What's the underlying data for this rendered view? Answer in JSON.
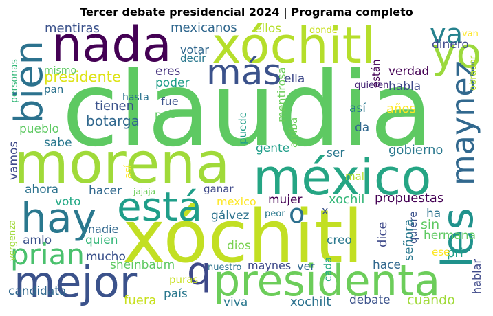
{
  "title": "Tercer debate presidencial 2024 | Programa completo",
  "words": [
    {
      "text": "claudia",
      "color": "#5ec962"
    },
    {
      "text": "morena",
      "color": "#a0da39"
    },
    {
      "text": "xóchitl",
      "color": "#c2df23"
    },
    {
      "text": "méxico",
      "color": "#25a584"
    },
    {
      "text": "nada",
      "color": "#440154"
    },
    {
      "text": "xóchitl",
      "color": "#b5de2b"
    },
    {
      "text": "presidenta",
      "color": "#6ccd5a"
    },
    {
      "text": "mejor",
      "color": "#3b528b"
    },
    {
      "text": "está",
      "color": "#1f9e89"
    },
    {
      "text": "hay",
      "color": "#2a788e"
    },
    {
      "text": "les",
      "color": "#20928c"
    },
    {
      "text": "bien",
      "color": "#2c728e"
    },
    {
      "text": "yo",
      "color": "#9bd93c"
    },
    {
      "text": "más",
      "color": "#3b528b"
    },
    {
      "text": "q",
      "color": "#3e4989"
    },
    {
      "text": "prian",
      "color": "#4ac16d"
    },
    {
      "text": "maynez",
      "color": "#31688e"
    },
    {
      "text": "va",
      "color": "#26828e"
    },
    {
      "text": "o",
      "color": "#2d708e"
    },
    {
      "text": "mentiras",
      "color": "#3b528b"
    },
    {
      "text": "mexicanos",
      "color": "#31688e"
    },
    {
      "text": "ellos",
      "color": "#b5de2b"
    },
    {
      "text": "donde",
      "color": "#c8e020"
    },
    {
      "text": "presidente",
      "color": "#dde318"
    },
    {
      "text": "dinero",
      "color": "#3e4989"
    },
    {
      "text": "van",
      "color": "#fde725"
    },
    {
      "text": "votar",
      "color": "#31688e"
    },
    {
      "text": "decir",
      "color": "#2a788e"
    },
    {
      "text": "personas",
      "color": "#35b779"
    },
    {
      "text": "mismo",
      "color": "#5ec962"
    },
    {
      "text": "pan",
      "color": "#2c728e"
    },
    {
      "text": "eres",
      "color": "#46327e"
    },
    {
      "text": "poder",
      "color": "#1f9e89"
    },
    {
      "text": "ella",
      "color": "#3e4989"
    },
    {
      "text": "verdad",
      "color": "#440154"
    },
    {
      "text": "habla",
      "color": "#3e4989"
    },
    {
      "text": "están",
      "color": "#440154"
    },
    {
      "text": "quieren",
      "color": "#482878"
    },
    {
      "text": "obrador",
      "color": "#b5de2b"
    },
    {
      "text": "mentirosa",
      "color": "#6ccd5a"
    },
    {
      "text": "hasta",
      "color": "#2c728e"
    },
    {
      "text": "fue",
      "color": "#3b528b"
    },
    {
      "text": "tienen",
      "color": "#3b528b"
    },
    {
      "text": "país",
      "color": "#5ec962"
    },
    {
      "text": "botarga",
      "color": "#31688e"
    },
    {
      "text": "así",
      "color": "#2a788e"
    },
    {
      "text": "años",
      "color": "#fde725"
    },
    {
      "text": "pueblo",
      "color": "#5ec962"
    },
    {
      "text": "puede",
      "color": "#1f9e89"
    },
    {
      "text": "arriba",
      "color": "#6ccd5a"
    },
    {
      "text": "da",
      "color": "#31688e"
    },
    {
      "text": "sabe",
      "color": "#2a788e"
    },
    {
      "text": "gente",
      "color": "#1f9e89"
    },
    {
      "text": "ser",
      "color": "#2a788e"
    },
    {
      "text": "gobierno",
      "color": "#2a788e"
    },
    {
      "text": "vamos",
      "color": "#3e4989"
    },
    {
      "text": "así",
      "color": "#fde725"
    },
    {
      "text": "mal",
      "color": "#b5de2b"
    },
    {
      "text": "ahora",
      "color": "#2c728e"
    },
    {
      "text": "hacer",
      "color": "#31688e"
    },
    {
      "text": "jajaja",
      "color": "#6ccd5a"
    },
    {
      "text": "ganar",
      "color": "#3e4989"
    },
    {
      "text": "xochil",
      "color": "#35b779"
    },
    {
      "text": "mujer",
      "color": "#440154"
    },
    {
      "text": "propuestas",
      "color": "#440154"
    },
    {
      "text": "voto",
      "color": "#22a884"
    },
    {
      "text": "mexico",
      "color": "#fde725"
    },
    {
      "text": "x",
      "color": "#3b528b"
    },
    {
      "text": "ha",
      "color": "#2c728e"
    },
    {
      "text": "gálvez",
      "color": "#2c728e"
    },
    {
      "text": "peor",
      "color": "#2a788e"
    },
    {
      "text": "sin",
      "color": "#5ec962"
    },
    {
      "text": "hermana",
      "color": "#5ec962"
    },
    {
      "text": "vergenza",
      "color": "#a0da39"
    },
    {
      "text": "nadie",
      "color": "#31688e"
    },
    {
      "text": "quien",
      "color": "#35b779"
    },
    {
      "text": "amlo",
      "color": "#3b528b"
    },
    {
      "text": "dios",
      "color": "#7ad151"
    },
    {
      "text": "creo",
      "color": "#2a788e"
    },
    {
      "text": "dice",
      "color": "#3e4989"
    },
    {
      "text": "quiere",
      "color": "#3b528b"
    },
    {
      "text": "señora",
      "color": "#2a788e"
    },
    {
      "text": "pri",
      "color": "#1f9e89"
    },
    {
      "text": "ese",
      "color": "#fde725"
    },
    {
      "text": "mucho",
      "color": "#3b528b"
    },
    {
      "text": "sheinbaum",
      "color": "#5ec962"
    },
    {
      "text": "nuestro",
      "color": "#2c728e"
    },
    {
      "text": "maynes",
      "color": "#3e4989"
    },
    {
      "text": "ver",
      "color": "#31688e"
    },
    {
      "text": "cada",
      "color": "#22a884"
    },
    {
      "text": "hace",
      "color": "#31688e"
    },
    {
      "text": "hablar",
      "color": "#3e4989"
    },
    {
      "text": "puras",
      "color": "#c8e020"
    },
    {
      "text": "candidata",
      "color": "#31688e"
    },
    {
      "text": "país",
      "color": "#2a788e"
    },
    {
      "text": "fuera",
      "color": "#c8e020"
    },
    {
      "text": "viva",
      "color": "#2a788e"
    },
    {
      "text": "xochilt",
      "color": "#2c728e"
    },
    {
      "text": "debate",
      "color": "#3b528b"
    },
    {
      "text": "cuando",
      "color": "#a0da39"
    }
  ]
}
